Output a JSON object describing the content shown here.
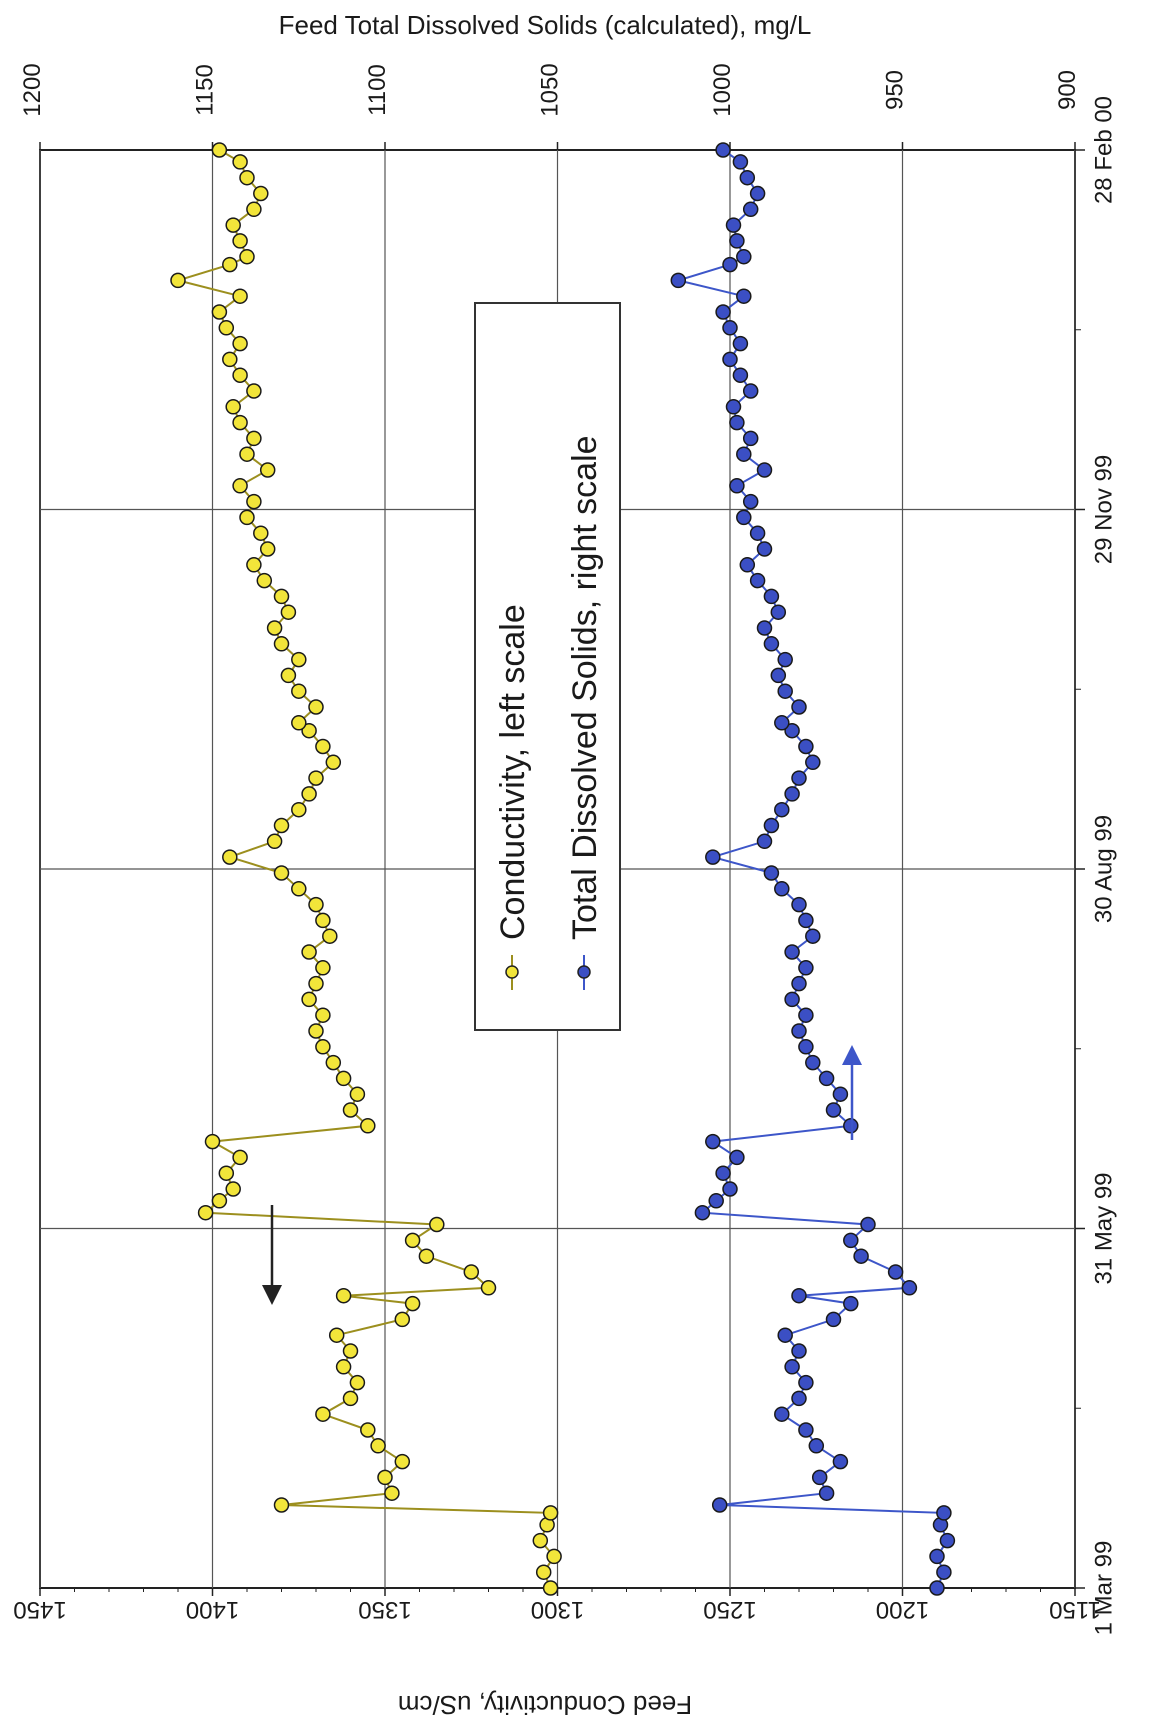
{
  "chart_data": {
    "type": "scatter",
    "orientation_note": "rotated",
    "title": "",
    "x_axis": {
      "label": "",
      "type": "date",
      "range": [
        "1999-03-01",
        "2000-02-28"
      ],
      "tick_labels": [
        "1 Mar 99",
        "31 May 99",
        "30 Aug 99",
        "29 Nov 99",
        "28 Feb 00"
      ]
    },
    "y_left": {
      "label": "Feed Conductivity, uS/cm",
      "range": [
        1150,
        1450
      ],
      "tick_labels": [
        "1150",
        "1200",
        "1250",
        "1300",
        "1350",
        "1400",
        "1450"
      ]
    },
    "y_right": {
      "label": "Feed Total Dissolved Solids (calculated), mg/L",
      "range": [
        900,
        1200
      ],
      "tick_labels": [
        "900",
        "950",
        "1000",
        "1050",
        "1100",
        "1150",
        "1200"
      ]
    },
    "grid": true,
    "legend_position": "center",
    "series": [
      {
        "name": "Conductivity, left scale",
        "axis": "left",
        "color": "#f2e53a",
        "line_color": "#9c8f1e",
        "x": [
          "1999-03-01",
          "1999-03-05",
          "1999-03-09",
          "1999-03-13",
          "1999-03-17",
          "1999-03-20",
          "1999-03-22",
          "1999-03-25",
          "1999-03-29",
          "1999-04-02",
          "1999-04-06",
          "1999-04-10",
          "1999-04-14",
          "1999-04-18",
          "1999-04-22",
          "1999-04-26",
          "1999-04-30",
          "1999-05-04",
          "1999-05-08",
          "1999-05-12",
          "1999-05-14",
          "1999-05-16",
          "1999-05-20",
          "1999-05-24",
          "1999-05-28",
          "1999-06-01",
          "1999-06-04",
          "1999-06-07",
          "1999-06-10",
          "1999-06-14",
          "1999-06-18",
          "1999-06-22",
          "1999-06-26",
          "1999-06-30",
          "1999-07-04",
          "1999-07-08",
          "1999-07-12",
          "1999-07-16",
          "1999-07-20",
          "1999-07-24",
          "1999-07-28",
          "1999-08-01",
          "1999-08-05",
          "1999-08-09",
          "1999-08-13",
          "1999-08-17",
          "1999-08-21",
          "1999-08-25",
          "1999-08-29",
          "1999-09-02",
          "1999-09-06",
          "1999-09-10",
          "1999-09-14",
          "1999-09-18",
          "1999-09-22",
          "1999-09-26",
          "1999-09-30",
          "1999-10-04",
          "1999-10-06",
          "1999-10-10",
          "1999-10-14",
          "1999-10-18",
          "1999-10-22",
          "1999-10-26",
          "1999-10-30",
          "1999-11-03",
          "1999-11-07",
          "1999-11-11",
          "1999-11-15",
          "1999-11-19",
          "1999-11-23",
          "1999-11-27",
          "1999-12-01",
          "1999-12-05",
          "1999-12-09",
          "1999-12-13",
          "1999-12-17",
          "1999-12-21",
          "1999-12-25",
          "1999-12-29",
          "2000-01-02",
          "2000-01-06",
          "2000-01-10",
          "2000-01-14",
          "2000-01-18",
          "2000-01-22",
          "2000-01-26",
          "2000-01-30",
          "2000-02-01",
          "2000-02-05",
          "2000-02-09",
          "2000-02-13",
          "2000-02-17",
          "2000-02-21",
          "2000-02-25",
          "2000-02-28"
        ],
        "y": [
          1302,
          1304,
          1301,
          1305,
          1303,
          1302,
          1380,
          1348,
          1350,
          1345,
          1352,
          1355,
          1368,
          1360,
          1358,
          1362,
          1360,
          1364,
          1345,
          1342,
          1362,
          1320,
          1325,
          1338,
          1342,
          1335,
          1402,
          1398,
          1394,
          1396,
          1392,
          1400,
          1355,
          1360,
          1358,
          1362,
          1365,
          1368,
          1370,
          1368,
          1372,
          1370,
          1368,
          1372,
          1366,
          1368,
          1370,
          1375,
          1380,
          1395,
          1382,
          1380,
          1375,
          1372,
          1370,
          1365,
          1368,
          1372,
          1375,
          1370,
          1375,
          1378,
          1375,
          1380,
          1382,
          1378,
          1380,
          1385,
          1388,
          1384,
          1386,
          1390,
          1388,
          1392,
          1384,
          1390,
          1388,
          1392,
          1394,
          1388,
          1392,
          1395,
          1392,
          1396,
          1398,
          1392,
          1410,
          1395,
          1390,
          1392,
          1394,
          1388,
          1386,
          1390,
          1392,
          1398
        ]
      },
      {
        "name": "Total Dissolved Solids, right scale",
        "axis": "right",
        "color": "#3b4fc4",
        "line_color": "#3d56c9",
        "x": [
          "1999-03-01",
          "1999-03-05",
          "1999-03-09",
          "1999-03-13",
          "1999-03-17",
          "1999-03-20",
          "1999-03-22",
          "1999-03-25",
          "1999-03-29",
          "1999-04-02",
          "1999-04-06",
          "1999-04-10",
          "1999-04-14",
          "1999-04-18",
          "1999-04-22",
          "1999-04-26",
          "1999-04-30",
          "1999-05-04",
          "1999-05-08",
          "1999-05-12",
          "1999-05-14",
          "1999-05-16",
          "1999-05-20",
          "1999-05-24",
          "1999-05-28",
          "1999-06-01",
          "1999-06-04",
          "1999-06-07",
          "1999-06-10",
          "1999-06-14",
          "1999-06-18",
          "1999-06-22",
          "1999-06-26",
          "1999-06-30",
          "1999-07-04",
          "1999-07-08",
          "1999-07-12",
          "1999-07-16",
          "1999-07-20",
          "1999-07-24",
          "1999-07-28",
          "1999-08-01",
          "1999-08-05",
          "1999-08-09",
          "1999-08-13",
          "1999-08-17",
          "1999-08-21",
          "1999-08-25",
          "1999-08-29",
          "1999-09-02",
          "1999-09-06",
          "1999-09-10",
          "1999-09-14",
          "1999-09-18",
          "1999-09-22",
          "1999-09-26",
          "1999-09-30",
          "1999-10-04",
          "1999-10-06",
          "1999-10-10",
          "1999-10-14",
          "1999-10-18",
          "1999-10-22",
          "1999-10-26",
          "1999-10-30",
          "1999-11-03",
          "1999-11-07",
          "1999-11-11",
          "1999-11-15",
          "1999-11-19",
          "1999-11-23",
          "1999-11-27",
          "1999-12-01",
          "1999-12-05",
          "1999-12-09",
          "1999-12-13",
          "1999-12-17",
          "1999-12-21",
          "1999-12-25",
          "1999-12-29",
          "2000-01-02",
          "2000-01-06",
          "2000-01-10",
          "2000-01-14",
          "2000-01-18",
          "2000-01-22",
          "2000-01-26",
          "2000-01-30",
          "2000-02-01",
          "2000-02-05",
          "2000-02-09",
          "2000-02-13",
          "2000-02-17",
          "2000-02-21",
          "2000-02-25",
          "2000-02-28"
        ],
        "y": [
          940,
          938,
          940,
          937,
          939,
          938,
          1003,
          972,
          974,
          968,
          975,
          978,
          985,
          980,
          978,
          982,
          980,
          984,
          970,
          965,
          980,
          948,
          952,
          962,
          965,
          960,
          1008,
          1004,
          1000,
          1002,
          998,
          1005,
          965,
          970,
          968,
          972,
          976,
          978,
          980,
          978,
          982,
          980,
          978,
          982,
          976,
          978,
          980,
          985,
          988,
          1005,
          990,
          988,
          985,
          982,
          980,
          976,
          978,
          982,
          985,
          980,
          984,
          986,
          984,
          988,
          990,
          986,
          988,
          992,
          995,
          990,
          992,
          996,
          994,
          998,
          990,
          996,
          994,
          998,
          999,
          994,
          997,
          1000,
          997,
          1000,
          1002,
          996,
          1015,
          1000,
          996,
          998,
          999,
          994,
          992,
          995,
          997,
          1002
        ]
      }
    ]
  }
}
